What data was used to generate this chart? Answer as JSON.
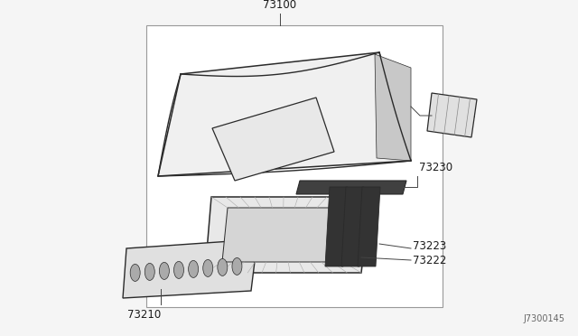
{
  "bg": "#f5f5f5",
  "lc": "#2a2a2a",
  "tc": "#1a1a1a",
  "diagram_id": "J7300145",
  "figsize": [
    6.4,
    3.72
  ],
  "dpi": 100
}
